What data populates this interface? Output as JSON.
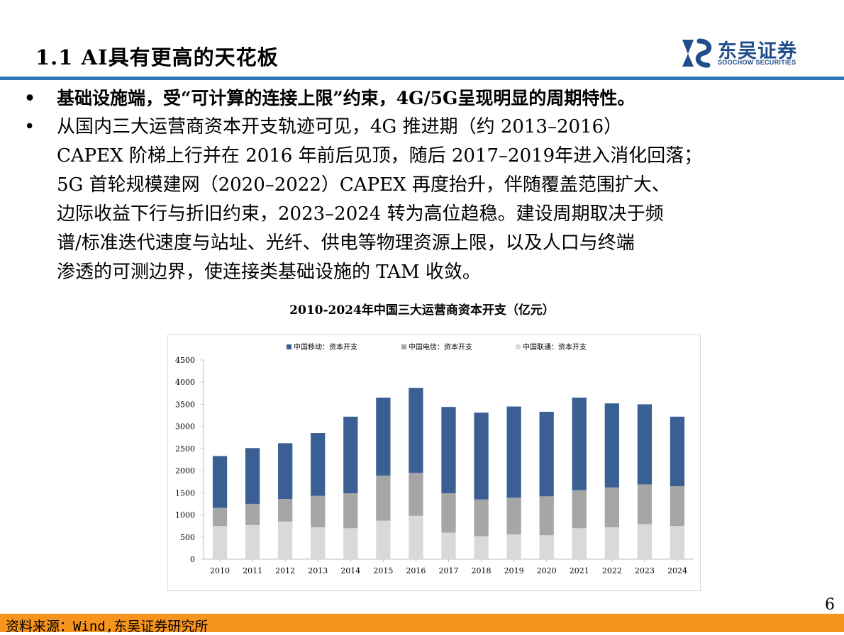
{
  "header": {
    "title": "1.1 AI具有更高的天花板",
    "logo_cn": "东吴证券",
    "logo_en": "SOOCHOW SECURITIES"
  },
  "bullets": [
    {
      "marker": "•",
      "text": "基础设施端，受“可计算的连接上限”约束，4G/5G呈现明显的周期特性。"
    },
    {
      "marker": "•",
      "lines": [
        "从国内三大运营商资本开支轨迹可见，4G 推进期（约 2013–2016）",
        "CAPEX 阶梯上行并在 2016 年前后见顶，随后 2017–2019年进入消化回落；",
        "5G 首轮规模建网（2020–2022）CAPEX 再度抬升，伴随覆盖范围扩大、",
        "边际收益下行与折旧约束，2023–2024 转为高位趋稳。建设周期取决于频",
        "谱/标准迭代速度与站址、光纤、供电等物理资源上限，以及人口与终端",
        "渗透的可测边界，使连接类基础设施的 TAM 收敛。"
      ]
    }
  ],
  "chart_title": "2010-2024年中国三大运营商资本开支（亿元）",
  "chart_data": {
    "type": "bar",
    "stacked": true,
    "title": "2010-2024年中国三大运营商资本开支（亿元）",
    "categories": [
      "2010",
      "2011",
      "2012",
      "2013",
      "2014",
      "2015",
      "2016",
      "2017",
      "2018",
      "2019",
      "2020",
      "2021",
      "2022",
      "2023",
      "2024"
    ],
    "series": [
      {
        "name": "中国联通：资本开支",
        "color": "#D9D9D9",
        "values": [
          750,
          770,
          850,
          720,
          700,
          870,
          980,
          600,
          520,
          560,
          540,
          700,
          720,
          790,
          750
        ]
      },
      {
        "name": "中国电信：资本开支",
        "color": "#A6A6A6",
        "values": [
          410,
          480,
          510,
          710,
          790,
          1020,
          970,
          890,
          830,
          830,
          880,
          860,
          900,
          900,
          900
        ]
      },
      {
        "name": "中国移动：资本开支",
        "color": "#3A5F93",
        "values": [
          1170,
          1260,
          1260,
          1420,
          1730,
          1760,
          1920,
          1950,
          1960,
          2060,
          1910,
          2090,
          1900,
          1810,
          1570
        ]
      }
    ],
    "legend_order": [
      "中国移动：资本开支",
      "中国电信：资本开支",
      "中国联通：资本开支"
    ],
    "ylim": [
      0,
      4500
    ],
    "yticks": [
      0,
      500,
      1000,
      1500,
      2000,
      2500,
      3000,
      3500,
      4000,
      4500
    ],
    "xlabel": "",
    "ylabel": "",
    "legend_position": "top",
    "grid": false
  },
  "footer": {
    "source": "资料来源：Wind,东吴证券研究所",
    "page": "6"
  }
}
